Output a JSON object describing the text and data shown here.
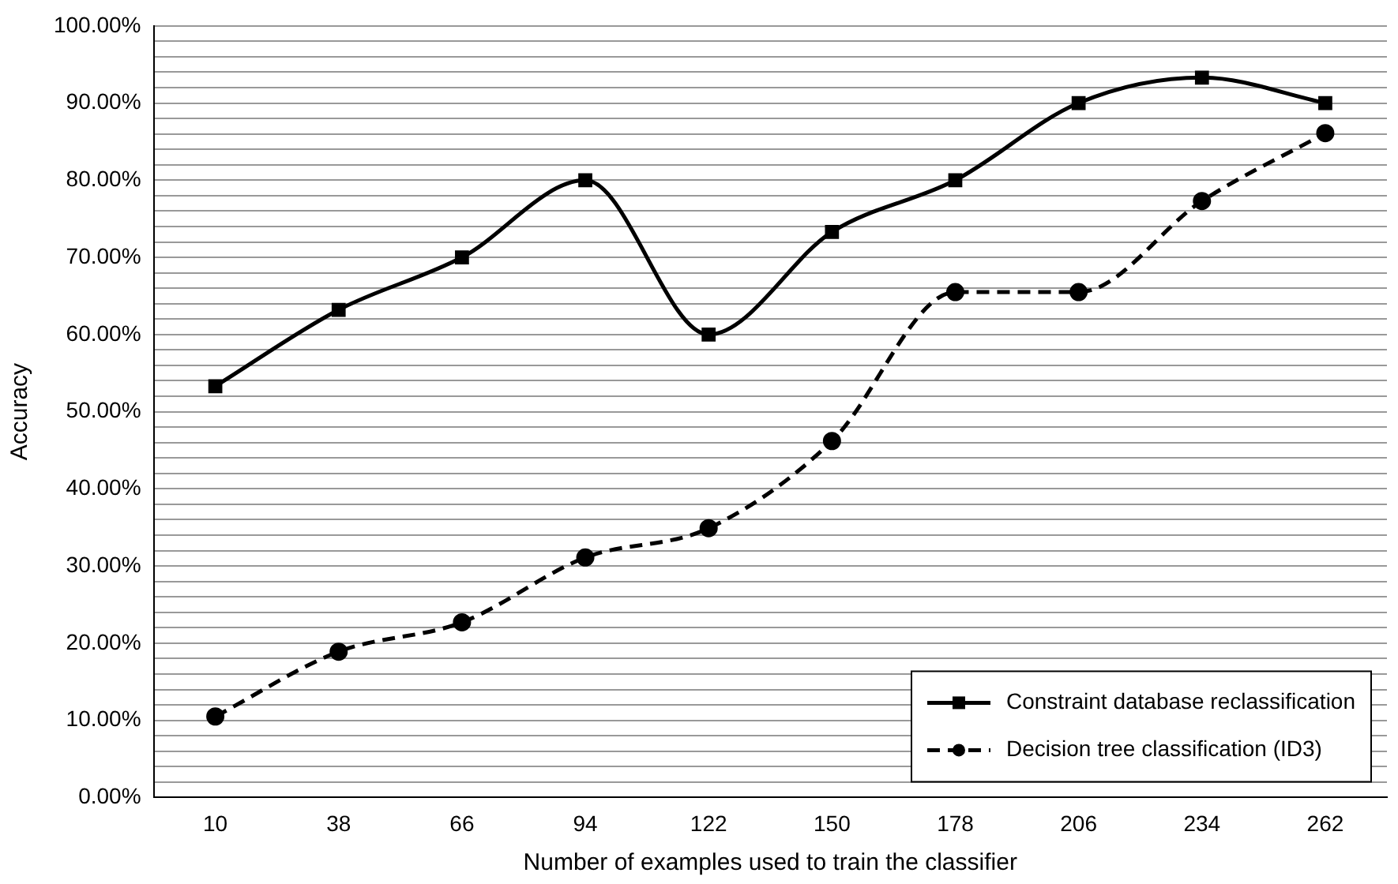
{
  "chart_data": {
    "type": "line",
    "xlabel": "Number of examples used to train the classifier",
    "ylabel": "Accuracy",
    "categories": [
      "10",
      "38",
      "66",
      "94",
      "122",
      "150",
      "178",
      "206",
      "234",
      "262"
    ],
    "series": [
      {
        "name": "Constraint database reclassification",
        "color": "#000000",
        "marker": "square",
        "line_style": "solid",
        "values": [
          53.3,
          63.2,
          70,
          80,
          60,
          73.3,
          80,
          90,
          93.3,
          90
        ]
      },
      {
        "name": "Decision tree classification (ID3)",
        "color": "#000000",
        "marker": "circle",
        "line_style": "dashed",
        "values": [
          10.5,
          18.9,
          22.7,
          31.1,
          34.9,
          46.2,
          65.5,
          65.5,
          77.3,
          86.1
        ]
      }
    ],
    "ylim": [
      0,
      100
    ],
    "yticks": [
      {
        "value": 0,
        "label": "0.00%"
      },
      {
        "value": 2,
        "label": null
      },
      {
        "value": 4,
        "label": null
      },
      {
        "value": 6,
        "label": null
      },
      {
        "value": 8,
        "label": null
      },
      {
        "value": 10,
        "label": "10.00%"
      },
      {
        "value": 12,
        "label": null
      },
      {
        "value": 14,
        "label": null
      },
      {
        "value": 16,
        "label": null
      },
      {
        "value": 18,
        "label": null
      },
      {
        "value": 20,
        "label": "20.00%"
      },
      {
        "value": 22,
        "label": null
      },
      {
        "value": 24,
        "label": null
      },
      {
        "value": 26,
        "label": null
      },
      {
        "value": 28,
        "label": null
      },
      {
        "value": 30,
        "label": "30.00%"
      },
      {
        "value": 32,
        "label": null
      },
      {
        "value": 34,
        "label": null
      },
      {
        "value": 36,
        "label": null
      },
      {
        "value": 38,
        "label": null
      },
      {
        "value": 40,
        "label": "40.00%"
      },
      {
        "value": 42,
        "label": null
      },
      {
        "value": 44,
        "label": null
      },
      {
        "value": 46,
        "label": null
      },
      {
        "value": 48,
        "label": null
      },
      {
        "value": 50,
        "label": "50.00%"
      },
      {
        "value": 52,
        "label": null
      },
      {
        "value": 54,
        "label": null
      },
      {
        "value": 56,
        "label": null
      },
      {
        "value": 58,
        "label": null
      },
      {
        "value": 60,
        "label": "60.00%"
      },
      {
        "value": 62,
        "label": null
      },
      {
        "value": 64,
        "label": null
      },
      {
        "value": 66,
        "label": null
      },
      {
        "value": 68,
        "label": null
      },
      {
        "value": 70,
        "label": "70.00%"
      },
      {
        "value": 72,
        "label": null
      },
      {
        "value": 74,
        "label": null
      },
      {
        "value": 76,
        "label": null
      },
      {
        "value": 78,
        "label": null
      },
      {
        "value": 80,
        "label": "80.00%"
      },
      {
        "value": 82,
        "label": null
      },
      {
        "value": 84,
        "label": null
      },
      {
        "value": 86,
        "label": null
      },
      {
        "value": 88,
        "label": null
      },
      {
        "value": 90,
        "label": "90.00%"
      },
      {
        "value": 92,
        "label": null
      },
      {
        "value": 94,
        "label": null
      },
      {
        "value": 96,
        "label": null
      },
      {
        "value": 98,
        "label": null
      },
      {
        "value": 100,
        "label": "100.00%"
      }
    ],
    "grid": "y",
    "legend": "bottom right"
  }
}
